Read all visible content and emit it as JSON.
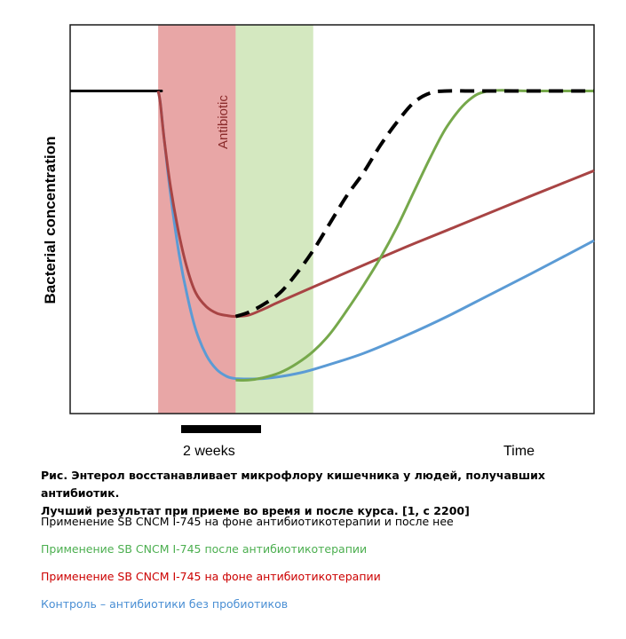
{
  "chart_data": {
    "type": "line",
    "ylabel": "Bacterial concentration",
    "xlabel": "Time",
    "x_marker_label": "2 weeks",
    "shaded_regions": [
      {
        "label": "Antibiotic",
        "x_range": [
          0.42,
          0.79
        ],
        "color": "#e8a6a6"
      },
      {
        "label": "",
        "x_range": [
          0.79,
          1.16
        ],
        "color": "#d4e8c0"
      }
    ],
    "xlim": [
      0,
      2.5
    ],
    "ylim": [
      0,
      100
    ],
    "axis_ticks": "none",
    "grid": false,
    "series": [
      {
        "color": "#000000",
        "dash": "solid",
        "x": [
          0,
          0.4,
          0.42
        ],
        "y": [
          83,
          83,
          83
        ]
      },
      {
        "color": "#000000",
        "dash": "dashed",
        "x": [
          0.79,
          0.85,
          0.92,
          1.0,
          1.08,
          1.16,
          1.24,
          1.32,
          1.4,
          1.48,
          1.56,
          1.64,
          1.72,
          1.8,
          1.9,
          2.0,
          2.2,
          2.5
        ],
        "y": [
          25,
          26,
          28,
          31,
          36,
          42,
          49,
          56,
          62,
          69,
          75,
          80,
          82.5,
          83,
          83,
          83,
          83,
          83
        ]
      },
      {
        "color": "#76a84b",
        "dash": "solid",
        "x": [
          0.79,
          0.85,
          0.92,
          1.0,
          1.08,
          1.16,
          1.24,
          1.32,
          1.4,
          1.48,
          1.56,
          1.64,
          1.72,
          1.8,
          1.9,
          2.0,
          2.2,
          2.5
        ],
        "y": [
          8.6,
          8.6,
          9.2,
          10.5,
          12.8,
          16,
          20.5,
          26.5,
          33,
          40,
          48,
          57,
          66,
          74,
          80.5,
          83,
          83,
          83
        ]
      },
      {
        "color": "#a84444",
        "dash": "solid",
        "x": [
          0.42,
          0.43,
          0.45,
          0.48,
          0.52,
          0.56,
          0.6,
          0.65,
          0.7,
          0.75,
          0.79,
          0.85,
          0.92,
          1.0,
          1.2,
          1.4,
          1.6,
          1.8,
          2.0,
          2.2,
          2.5
        ],
        "y": [
          83,
          80,
          70,
          58,
          46,
          37,
          31,
          27.5,
          25.8,
          25.2,
          25,
          25.3,
          26.8,
          28.8,
          33.5,
          38.2,
          42.8,
          47.2,
          51.6,
          56,
          62.5
        ]
      },
      {
        "color": "#5b9bd5",
        "dash": "solid",
        "x": [
          0.42,
          0.43,
          0.45,
          0.48,
          0.52,
          0.56,
          0.6,
          0.65,
          0.7,
          0.75,
          0.79,
          0.85,
          0.92,
          1.0,
          1.1,
          1.2,
          1.4,
          1.6,
          1.8,
          2.0,
          2.2,
          2.5
        ],
        "y": [
          83,
          80,
          70,
          56,
          41,
          30,
          21.5,
          15,
          11.3,
          9.5,
          9.0,
          8.9,
          9.0,
          9.5,
          10.5,
          12,
          15.5,
          20,
          25,
          30.5,
          36,
          44.5
        ]
      }
    ]
  },
  "caption": {
    "line1": "Рис. Энтерол восстанавливает микрофлору кишечника у людей, получавших антибиотик.",
    "line2": "Лучший результат при приеме во время и после курса. [1, с 2200]"
  },
  "legend": [
    {
      "text": "Применение SB CNCM I-745 на фоне антибиотикотерапии и после нее",
      "color": "#000000"
    },
    {
      "text": "Применение SB CNCM I-745 после антибиотикотерапии",
      "color": "#4caf50"
    },
    {
      "text": "Применение SB CNCM I-745 на фоне антибиотикотерапии",
      "color": "#cc0000"
    },
    {
      "text": "Контроль – антибиотики без пробиотиков",
      "color": "#4a8fd4"
    }
  ]
}
